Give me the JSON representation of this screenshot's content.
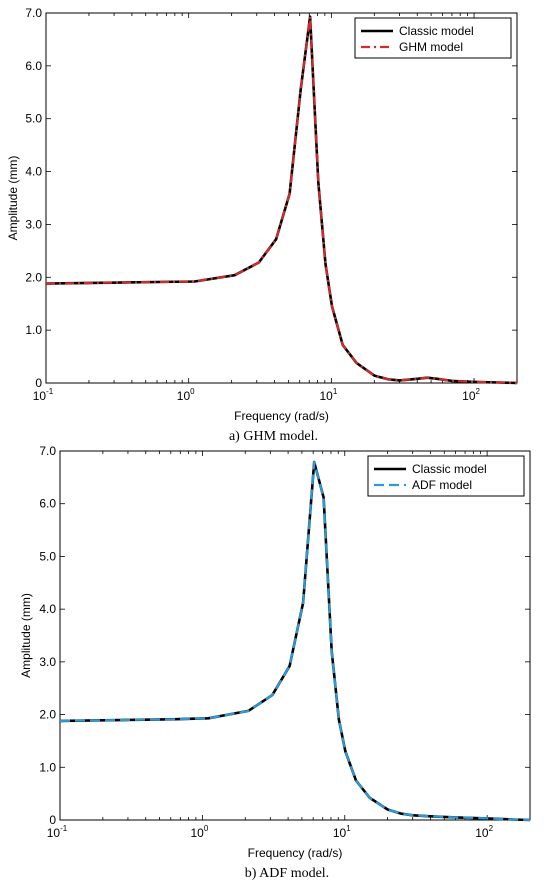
{
  "chart_data": [
    {
      "type": "line",
      "caption": "a) GHM model.",
      "xlabel": "Frequency (rad/s)",
      "ylabel": "Amplitude (mm)",
      "xscale": "log",
      "xlim": [
        0.1,
        200
      ],
      "ylim": [
        0,
        7.0
      ],
      "x_ticks": [
        {
          "base": "10",
          "exp": "-1"
        },
        {
          "base": "10",
          "exp": "0"
        },
        {
          "base": "10",
          "exp": "1"
        },
        {
          "base": "10",
          "exp": "2"
        }
      ],
      "y_ticks": [
        "0",
        "1.0",
        "2.0",
        "3.0",
        "4.0",
        "5.0",
        "6.0",
        "7.0"
      ],
      "legend_position": "top-right",
      "series": [
        {
          "name": "Classic model",
          "color": "#000000",
          "style": "solid",
          "x": [
            0.1,
            0.6,
            1.1,
            2.1,
            3.1,
            4.1,
            5.1,
            6.1,
            7.1,
            8.1,
            9.1,
            10.1,
            12,
            15,
            20,
            25,
            30,
            40,
            47,
            55,
            70,
            100,
            150,
            200
          ],
          "y": [
            1.88,
            1.91,
            1.92,
            2.04,
            2.28,
            2.72,
            3.58,
            5.55,
            6.93,
            3.8,
            2.25,
            1.45,
            0.72,
            0.38,
            0.14,
            0.07,
            0.05,
            0.08,
            0.1,
            0.08,
            0.04,
            0.02,
            0.01,
            0.0
          ]
        },
        {
          "name": "GHM model",
          "color": "#d42a2a",
          "style": "dash-dot",
          "x": [
            0.1,
            0.6,
            1.1,
            2.1,
            3.1,
            4.1,
            5.1,
            6.1,
            7.1,
            8.1,
            9.1,
            10.1,
            12,
            15,
            20,
            25,
            30,
            40,
            47,
            55,
            70,
            100,
            150,
            200
          ],
          "y": [
            1.88,
            1.91,
            1.92,
            2.04,
            2.28,
            2.72,
            3.58,
            5.55,
            6.93,
            3.8,
            2.25,
            1.45,
            0.72,
            0.38,
            0.14,
            0.07,
            0.05,
            0.08,
            0.1,
            0.08,
            0.04,
            0.02,
            0.01,
            0.0
          ]
        }
      ]
    },
    {
      "type": "line",
      "caption": "b) ADF model.",
      "xlabel": "Frequency (rad/s)",
      "ylabel": "Amplitude (mm)",
      "xscale": "log",
      "xlim": [
        0.1,
        200
      ],
      "ylim": [
        0,
        7.0
      ],
      "x_ticks": [
        {
          "base": "10",
          "exp": "-1"
        },
        {
          "base": "10",
          "exp": "0"
        },
        {
          "base": "10",
          "exp": "1"
        },
        {
          "base": "10",
          "exp": "2"
        }
      ],
      "y_ticks": [
        "0",
        "1.0",
        "2.0",
        "3.0",
        "4.0",
        "5.0",
        "6.0",
        "7.0"
      ],
      "legend_position": "top-right",
      "series": [
        {
          "name": "Classic model",
          "color": "#000000",
          "style": "solid",
          "x": [
            0.1,
            0.6,
            1.1,
            2.1,
            3.1,
            4.1,
            5.1,
            6.1,
            7.1,
            8.1,
            9.1,
            10.1,
            12,
            15,
            20,
            25,
            30,
            40,
            60,
            100,
            150,
            200
          ],
          "y": [
            1.88,
            1.91,
            1.93,
            2.07,
            2.37,
            2.92,
            4.12,
            6.79,
            6.12,
            3.2,
            1.9,
            1.3,
            0.75,
            0.42,
            0.2,
            0.12,
            0.09,
            0.07,
            0.05,
            0.03,
            0.01,
            0.0
          ]
        },
        {
          "name": "ADF model",
          "color": "#2b9ad6",
          "style": "dashed",
          "x": [
            0.1,
            0.6,
            1.1,
            2.1,
            3.1,
            4.1,
            5.1,
            6.1,
            7.1,
            8.1,
            9.1,
            10.1,
            12,
            15,
            20,
            25,
            30,
            40,
            60,
            100,
            150,
            200
          ],
          "y": [
            1.88,
            1.91,
            1.93,
            2.07,
            2.37,
            2.92,
            4.12,
            6.79,
            6.12,
            3.2,
            1.9,
            1.3,
            0.75,
            0.42,
            0.2,
            0.12,
            0.09,
            0.07,
            0.05,
            0.03,
            0.01,
            0.0
          ]
        }
      ]
    }
  ]
}
